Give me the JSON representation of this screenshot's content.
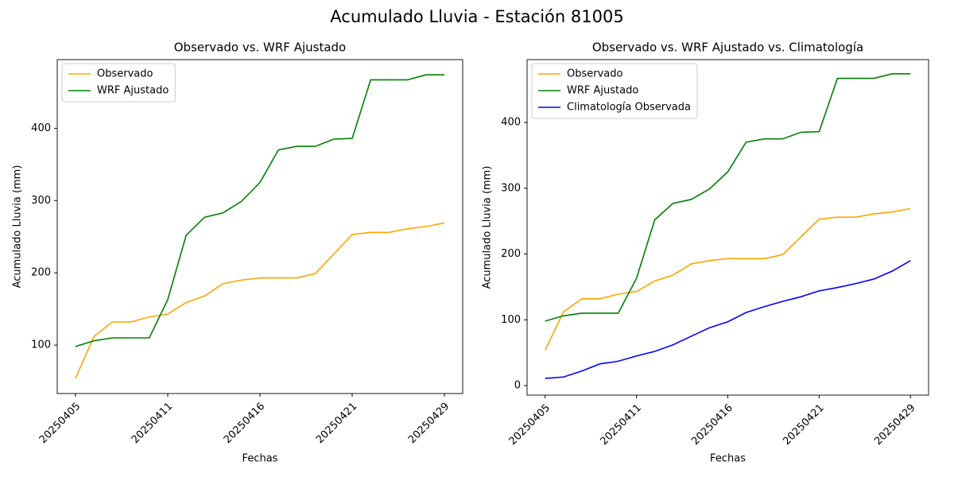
{
  "title": "Acumulado Lluvia - Estación 81005",
  "chart_data": [
    {
      "type": "line",
      "title": "Observado vs. WRF Ajustado",
      "xlabel": "Fechas",
      "ylabel": "Acumulado Lluvia (mm)",
      "categories": [
        "20250405",
        null,
        null,
        null,
        null,
        "20250411",
        null,
        null,
        null,
        null,
        "20250416",
        null,
        null,
        null,
        null,
        "20250421",
        null,
        null,
        null,
        null,
        "20250429"
      ],
      "series": [
        {
          "name": "Observado",
          "color": "orange",
          "values": [
            54,
            112,
            132,
            132,
            139,
            143,
            159,
            168,
            185,
            190,
            193,
            193,
            193,
            199,
            226,
            253,
            256,
            256,
            261,
            264,
            269
          ]
        },
        {
          "name": "WRF Ajustado",
          "color": "green",
          "values": [
            98,
            106,
            110,
            110,
            110,
            163,
            252,
            277,
            283,
            299,
            325,
            370,
            375,
            375,
            385,
            386,
            467,
            467,
            467,
            474,
            474
          ]
        }
      ],
      "ylim": [
        33,
        495
      ],
      "yticks": [
        100,
        200,
        300,
        400
      ],
      "legend": "upper left"
    },
    {
      "type": "line",
      "title": "Observado vs. WRF Ajustado vs. Climatología",
      "xlabel": "Fechas",
      "ylabel": "Acumulado Lluvia (mm)",
      "categories": [
        "20250405",
        null,
        null,
        null,
        null,
        "20250411",
        null,
        null,
        null,
        null,
        "20250416",
        null,
        null,
        null,
        null,
        "20250421",
        null,
        null,
        null,
        null,
        "20250429"
      ],
      "series": [
        {
          "name": "Observado",
          "color": "orange",
          "values": [
            54,
            112,
            132,
            132,
            139,
            143,
            159,
            168,
            185,
            190,
            193,
            193,
            193,
            199,
            226,
            253,
            256,
            256,
            261,
            264,
            269
          ]
        },
        {
          "name": "WRF Ajustado",
          "color": "green",
          "values": [
            98,
            106,
            110,
            110,
            110,
            163,
            252,
            277,
            283,
            299,
            325,
            370,
            375,
            375,
            385,
            386,
            467,
            467,
            467,
            474,
            474
          ]
        },
        {
          "name": "Climatología Observada",
          "color": "blue",
          "values": [
            11,
            13,
            22,
            33,
            37,
            45,
            52,
            62,
            75,
            88,
            97,
            111,
            120,
            128,
            135,
            144,
            149,
            155,
            162,
            174,
            190
          ]
        }
      ],
      "ylim": [
        -14.5,
        495.5
      ],
      "yticks": [
        0,
        100,
        200,
        300,
        400
      ],
      "legend": "upper left"
    }
  ]
}
